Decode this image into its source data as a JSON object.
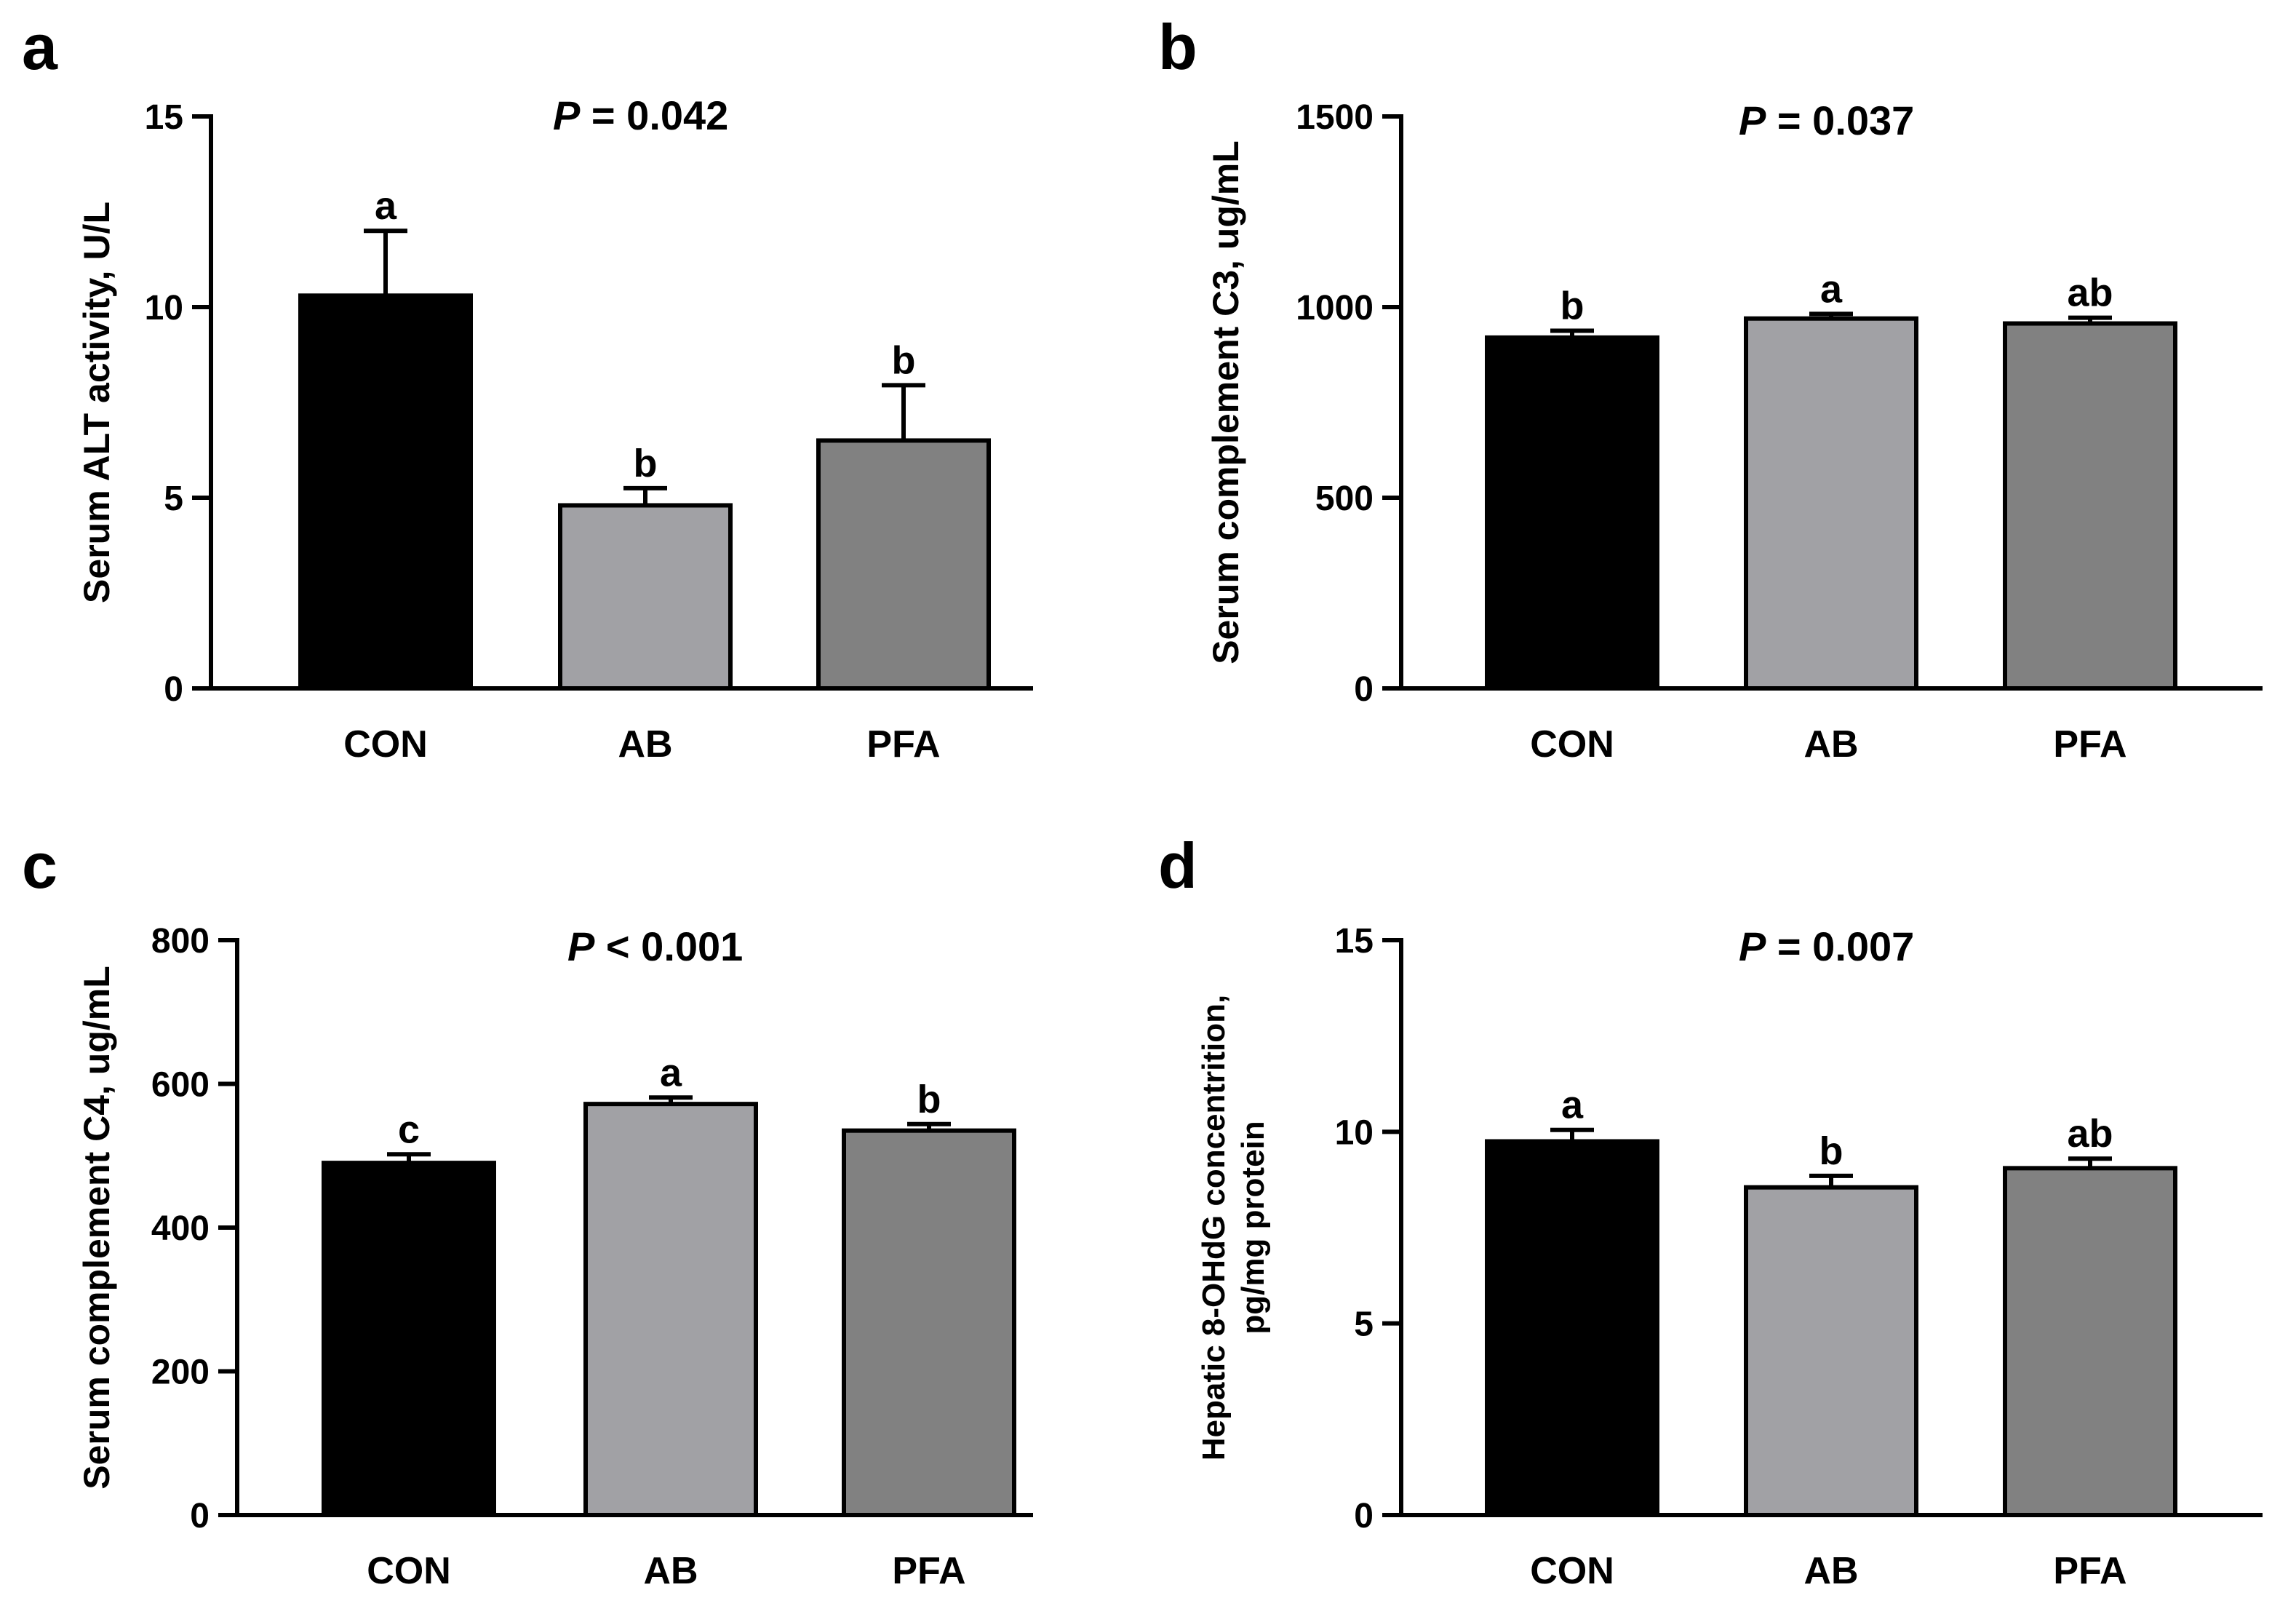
{
  "chart_data": [
    {
      "type": "bar",
      "panel": "a",
      "p_label": "P",
      "p_text": " = 0.042",
      "ylabel": "Serum ALT activity, U/L",
      "ylabel_lines": [
        "Serum ALT activity, U/L"
      ],
      "xlabel": "",
      "ylim": [
        0,
        15
      ],
      "yticks": [
        0,
        5,
        10,
        15
      ],
      "ytick_labels": [
        "0",
        "5",
        "10",
        "15"
      ],
      "categories": [
        "CON",
        "AB",
        "PFA"
      ],
      "values": [
        10.3,
        4.8,
        6.5
      ],
      "errors": [
        1.7,
        0.45,
        1.45
      ],
      "significance": [
        "a",
        "b",
        "b"
      ],
      "colors": [
        "#000000",
        "#a1a1a5",
        "#818181"
      ]
    },
    {
      "type": "bar",
      "panel": "b",
      "p_label": "P",
      "p_text": " = 0.037",
      "ylabel": "Serum complement C3, ug/mL",
      "ylabel_lines": [
        "Serum complement C3, ug/mL"
      ],
      "xlabel": "",
      "ylim": [
        0,
        1500
      ],
      "yticks": [
        0,
        500,
        1000,
        1500
      ],
      "ytick_labels": [
        "0",
        "500",
        "1000",
        "1500"
      ],
      "categories": [
        "CON",
        "AB",
        "PFA"
      ],
      "values": [
        920,
        970,
        957
      ],
      "errors": [
        18,
        12,
        15
      ],
      "significance": [
        "b",
        "a",
        "ab"
      ],
      "colors": [
        "#000000",
        "#a1a1a5",
        "#818181"
      ]
    },
    {
      "type": "bar",
      "panel": "c",
      "p_label": "P",
      "p_text": " < 0.001",
      "ylabel": "Serum complement C4, ug/mL",
      "ylabel_lines": [
        "Serum complement C4, ug/mL"
      ],
      "xlabel": "",
      "ylim": [
        0,
        800
      ],
      "yticks": [
        0,
        200,
        400,
        600,
        800
      ],
      "ytick_labels": [
        "0",
        "200",
        "400",
        "600",
        "800"
      ],
      "categories": [
        "CON",
        "AB",
        "PFA"
      ],
      "values": [
        490,
        572,
        535
      ],
      "errors": [
        12,
        9,
        9
      ],
      "significance": [
        "c",
        "a",
        "b"
      ],
      "colors": [
        "#000000",
        "#a1a1a5",
        "#818181"
      ]
    },
    {
      "type": "bar",
      "panel": "d",
      "p_label": "P",
      "p_text": " = 0.007",
      "ylabel": "Hepatic 8-OHdG concentrition, pg/mg protein",
      "ylabel_lines": [
        "Hepatic 8-OHdG concentrition,",
        "pg/mg protein"
      ],
      "xlabel": "",
      "ylim": [
        0,
        15
      ],
      "yticks": [
        0,
        5,
        10,
        15
      ],
      "ytick_labels": [
        "0",
        "5",
        "10",
        "15"
      ],
      "categories": [
        "CON",
        "AB",
        "PFA"
      ],
      "values": [
        9.75,
        8.55,
        9.05
      ],
      "errors": [
        0.3,
        0.3,
        0.25
      ],
      "significance": [
        "a",
        "b",
        "ab"
      ],
      "colors": [
        "#000000",
        "#a1a1a5",
        "#818181"
      ]
    }
  ]
}
